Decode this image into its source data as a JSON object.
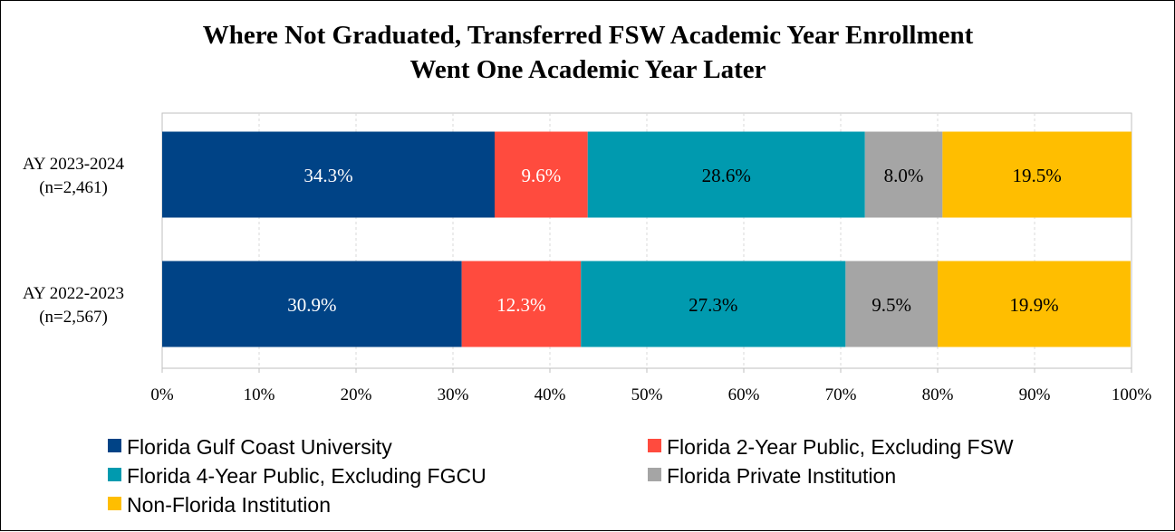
{
  "chart_data": {
    "type": "bar",
    "orientation": "horizontal",
    "stacked": true,
    "title": [
      "Where Not Graduated, Transferred FSW Academic Year Enrollment",
      "Went One Academic Year Later"
    ],
    "categories": [
      [
        "AY 2023-2024",
        "(n=2,461)"
      ],
      [
        "AY 2022-2023",
        "(n=2,567)"
      ]
    ],
    "series": [
      {
        "name": "Florida Gulf Coast University",
        "color": "#004386",
        "label_color": "#ffffff",
        "values": [
          34.3,
          30.9
        ],
        "labels": [
          "34.3%",
          "30.9%"
        ]
      },
      {
        "name": "Florida 2-Year Public, Excluding FSW",
        "color": "#ff4b3e",
        "label_color": "#ffffff",
        "values": [
          9.6,
          12.3
        ],
        "labels": [
          "9.6%",
          "12.3%"
        ]
      },
      {
        "name": "Florida 4-Year Public, Excluding FGCU",
        "color": "#009aaf",
        "label_color": "#000000",
        "values": [
          28.6,
          27.3
        ],
        "labels": [
          "28.6%",
          "27.3%"
        ]
      },
      {
        "name": "Florida Private Institution",
        "color": "#a5a5a5",
        "label_color": "#000000",
        "values": [
          8.0,
          9.5
        ],
        "labels": [
          "8.0%",
          "9.5%"
        ]
      },
      {
        "name": "Non-Florida Institution",
        "color": "#ffbe00",
        "label_color": "#000000",
        "values": [
          19.5,
          19.9
        ],
        "labels": [
          "19.5%",
          "19.9%"
        ]
      }
    ],
    "xlim": [
      0,
      100
    ],
    "xticks": [
      0,
      10,
      20,
      30,
      40,
      50,
      60,
      70,
      80,
      90,
      100
    ],
    "xtick_labels": [
      "0%",
      "10%",
      "20%",
      "30%",
      "40%",
      "50%",
      "60%",
      "70%",
      "80%",
      "90%",
      "100%"
    ],
    "xlabel": "",
    "ylabel": "",
    "grid": true,
    "legend_position": "bottom"
  }
}
